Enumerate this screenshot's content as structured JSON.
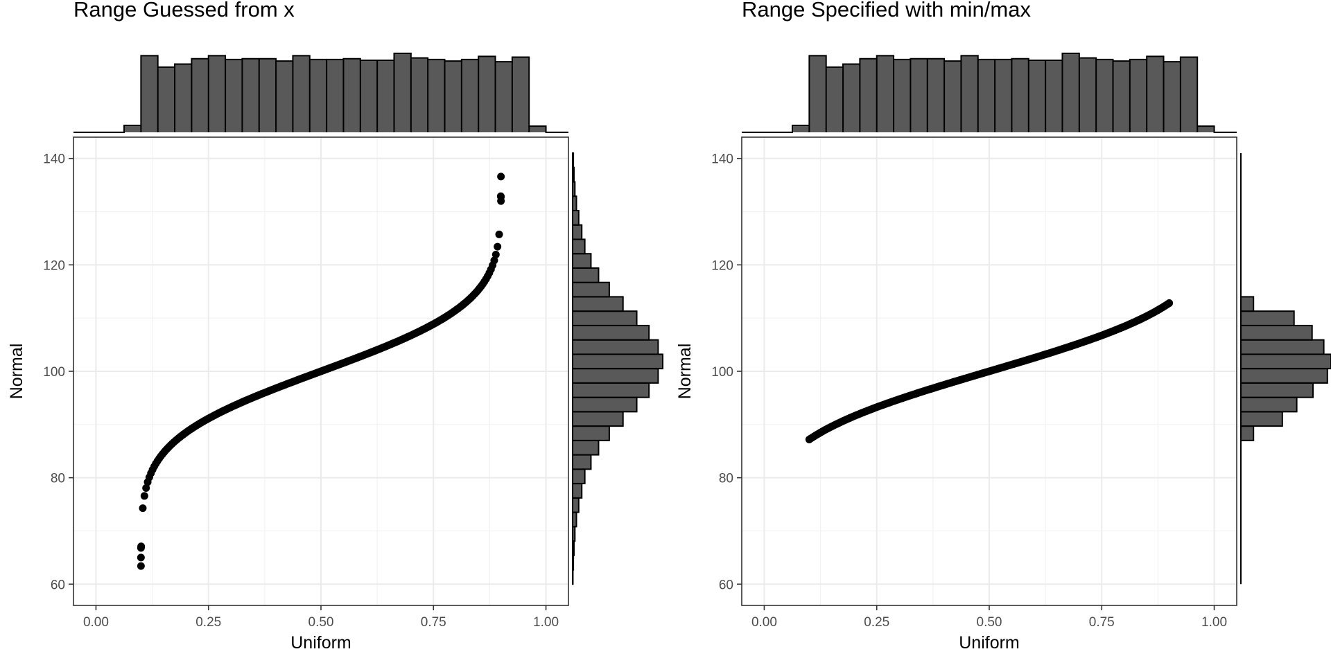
{
  "chart_data": [
    {
      "type": "scatter",
      "title": "Range Guessed from x",
      "xlabel": "Uniform",
      "ylabel": "Normal",
      "xlim": [
        -0.05,
        1.05
      ],
      "ylim": [
        56,
        144
      ],
      "xticks": [
        0,
        0.25,
        0.5,
        0.75,
        1
      ],
      "xtick_labels": [
        "0.00",
        "0.25",
        "0.50",
        "0.75",
        "1.00"
      ],
      "yticks": [
        60,
        80,
        100,
        120,
        140
      ],
      "ytick_labels": [
        "60",
        "80",
        "100",
        "120",
        "140"
      ],
      "grid": true,
      "points": {
        "description": "points lie on the normal quantile curve y = 100 + 10*qnorm((x-0.1)/0.8) for x between 0.1 and 0.9",
        "x_range": [
          0.1,
          0.9
        ],
        "y_range": [
          63.4,
          136.6
        ]
      },
      "marginal_x_histogram": {
        "bin_edges": [
          -0.05,
          -0.0125,
          0.025,
          0.0625,
          0.1,
          0.1375,
          0.175,
          0.2125,
          0.25,
          0.2875,
          0.325,
          0.3625,
          0.4,
          0.4375,
          0.475,
          0.5125,
          0.55,
          0.5875,
          0.625,
          0.6625,
          0.7,
          0.7375,
          0.775,
          0.8125,
          0.85,
          0.8875,
          0.925,
          0.9625,
          1.0,
          1.05
        ],
        "counts": [
          0,
          0,
          0,
          9,
          100,
          85,
          89,
          96,
          100,
          95,
          96,
          96,
          93,
          100,
          95,
          95,
          96,
          94,
          94,
          103,
          97,
          95,
          93,
          95,
          99,
          92,
          98,
          8,
          0
        ]
      },
      "marginal_y_histogram": {
        "bin_edges": [
          60,
          62.7,
          65.4,
          68.1,
          70.8,
          73.5,
          76.2,
          78.9,
          81.6,
          84.3,
          87,
          89.7,
          92.4,
          95.1,
          97.8,
          100.5,
          103.2,
          105.9,
          108.6,
          111.3,
          114,
          116.7,
          119.4,
          122.1,
          124.8,
          127.5,
          130.2,
          132.9,
          135.6,
          138.3,
          141
        ],
        "counts": [
          0.2,
          0.5,
          0.9,
          1.5,
          2.5,
          4,
          6,
          8,
          12,
          17,
          24,
          33,
          42,
          50,
          56,
          59,
          56,
          50,
          42,
          33,
          24,
          17,
          12,
          8,
          6,
          4,
          2.5,
          1.5,
          0.9,
          0.5
        ]
      }
    },
    {
      "type": "scatter",
      "title": "Range Specified with min/max",
      "xlabel": "Uniform",
      "ylabel": "Normal",
      "xlim": [
        -0.05,
        1.05
      ],
      "ylim": [
        56,
        144
      ],
      "xticks": [
        0,
        0.25,
        0.5,
        0.75,
        1
      ],
      "xtick_labels": [
        "0.00",
        "0.25",
        "0.50",
        "0.75",
        "1.00"
      ],
      "yticks": [
        60,
        80,
        100,
        120,
        140
      ],
      "ytick_labels": [
        "60",
        "80",
        "100",
        "120",
        "140"
      ],
      "grid": true,
      "points": {
        "description": "points lie on the normal quantile curve y = 100 + 10*qnorm(x) for x between 0.1 and 0.9",
        "x_range": [
          0.1,
          0.9
        ],
        "y_range": [
          87.2,
          112.8
        ]
      },
      "marginal_x_histogram": {
        "bin_edges": [
          -0.05,
          -0.0125,
          0.025,
          0.0625,
          0.1,
          0.1375,
          0.175,
          0.2125,
          0.25,
          0.2875,
          0.325,
          0.3625,
          0.4,
          0.4375,
          0.475,
          0.5125,
          0.55,
          0.5875,
          0.625,
          0.6625,
          0.7,
          0.7375,
          0.775,
          0.8125,
          0.85,
          0.8875,
          0.925,
          0.9625,
          1.0,
          1.05
        ],
        "counts": [
          0,
          0,
          0,
          9,
          100,
          85,
          89,
          96,
          100,
          95,
          96,
          96,
          93,
          100,
          95,
          95,
          96,
          94,
          94,
          103,
          97,
          95,
          93,
          95,
          99,
          92,
          98,
          8,
          0
        ]
      },
      "marginal_y_histogram": {
        "bin_edges": [
          60,
          62.7,
          65.4,
          68.1,
          70.8,
          73.5,
          76.2,
          78.9,
          81.6,
          84.3,
          87,
          89.7,
          92.4,
          95.1,
          97.8,
          100.5,
          103.2,
          105.9,
          108.6,
          111.3,
          114,
          116.7,
          119.4,
          122.1,
          124.8,
          127.5,
          130.2,
          132.9,
          135.6,
          138.3,
          141
        ],
        "counts": [
          0,
          0,
          0,
          0,
          0,
          0,
          0,
          0,
          0,
          0,
          14,
          46,
          62,
          80,
          96,
          100,
          92,
          79,
          59,
          14,
          0,
          0,
          0,
          0,
          0,
          0,
          0,
          0,
          0,
          0
        ]
      }
    }
  ]
}
